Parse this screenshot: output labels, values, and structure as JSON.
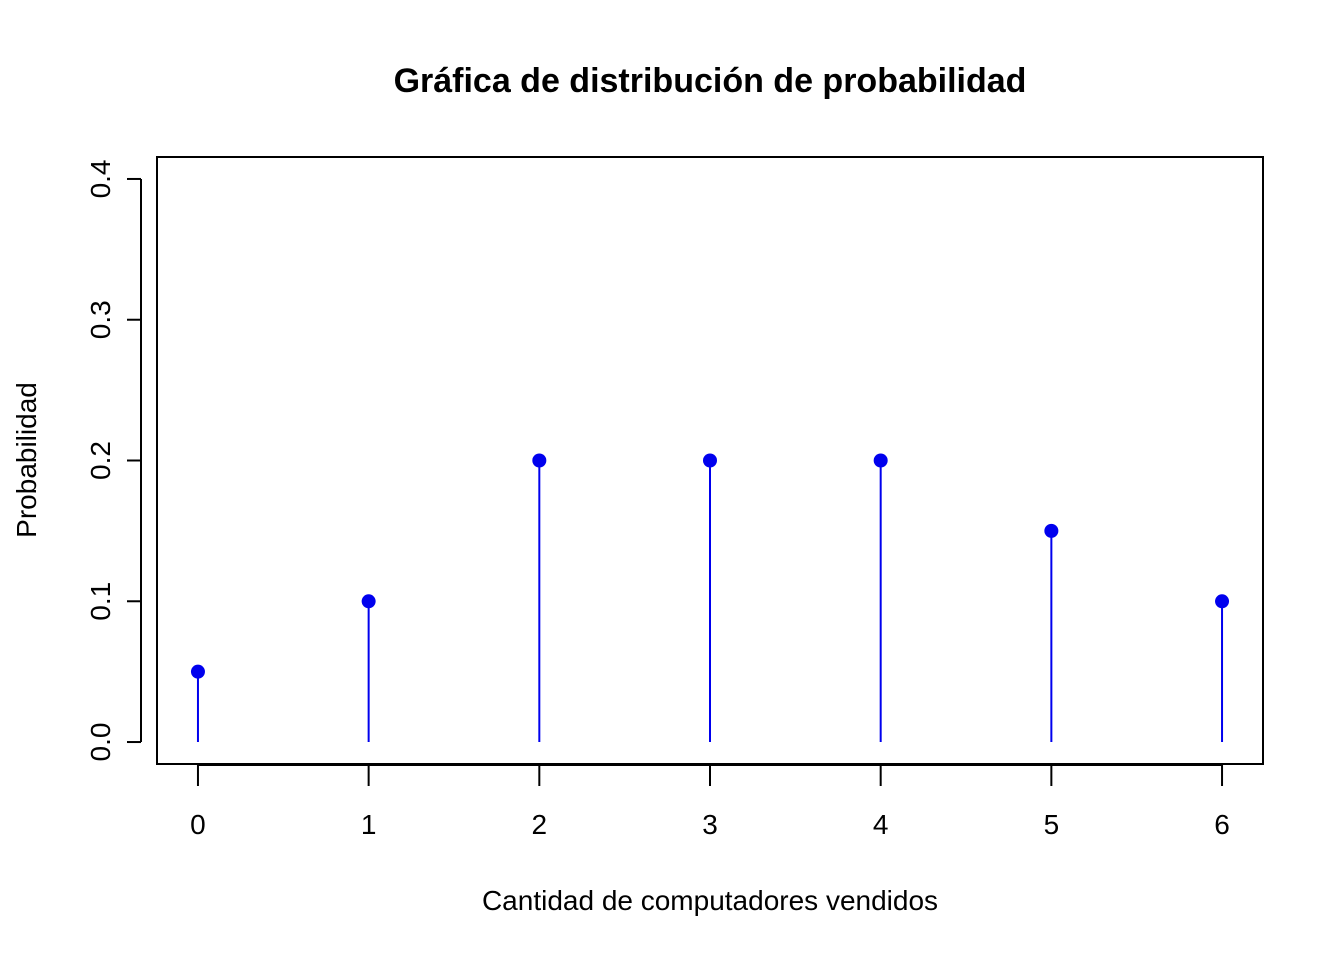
{
  "chart_data": {
    "type": "scatter",
    "subtype": "stem",
    "title": "Gráfica de distribución de probabilidad",
    "xlabel": "Cantidad de computadores vendidos",
    "ylabel": "Probabilidad",
    "x": [
      0,
      1,
      2,
      3,
      4,
      5,
      6
    ],
    "values": [
      0.05,
      0.1,
      0.2,
      0.2,
      0.2,
      0.15,
      0.1
    ],
    "xlim": [
      -0.24,
      6.24
    ],
    "ylim": [
      -0.0156,
      0.4156
    ],
    "x_ticks": [
      "0",
      "1",
      "2",
      "3",
      "4",
      "5",
      "6"
    ],
    "y_ticks": [
      0.0,
      0.1,
      0.2,
      0.3,
      0.4
    ],
    "y_tick_labels": [
      "0.0",
      "0.1",
      "0.2",
      "0.3",
      "0.4"
    ],
    "grid": false,
    "legend": "none",
    "colors": {
      "series": "#0000ee",
      "axis": "#000000"
    }
  }
}
